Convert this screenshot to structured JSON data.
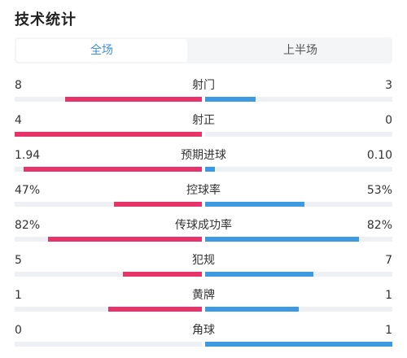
{
  "header": {
    "title": "技术统计"
  },
  "tabs": [
    {
      "label": "全场",
      "active": true
    },
    {
      "label": "上半场",
      "active": false
    }
  ],
  "colors": {
    "home": "#e8336a",
    "away": "#3d9ae2",
    "accent": "#3d8fe0"
  },
  "stats": [
    {
      "label": "射门",
      "home": "8",
      "away": "3",
      "home_share": 0.73,
      "away_share": 0.27
    },
    {
      "label": "射正",
      "home": "4",
      "away": "0",
      "home_share": 1.0,
      "away_share": 0.0
    },
    {
      "label": "预期进球",
      "home": "1.94",
      "away": "0.10",
      "home_share": 0.95,
      "away_share": 0.05
    },
    {
      "label": "控球率",
      "home": "47%",
      "away": "53%",
      "home_share": 0.47,
      "away_share": 0.53
    },
    {
      "label": "传球成功率",
      "home": "82%",
      "away": "82%",
      "home_share": 0.82,
      "away_share": 0.82
    },
    {
      "label": "犯规",
      "home": "5",
      "away": "7",
      "home_share": 0.42,
      "away_share": 0.58
    },
    {
      "label": "黄牌",
      "home": "1",
      "away": "1",
      "home_share": 0.5,
      "away_share": 0.5
    },
    {
      "label": "角球",
      "home": "0",
      "away": "1",
      "home_share": 0.0,
      "away_share": 1.0
    }
  ]
}
